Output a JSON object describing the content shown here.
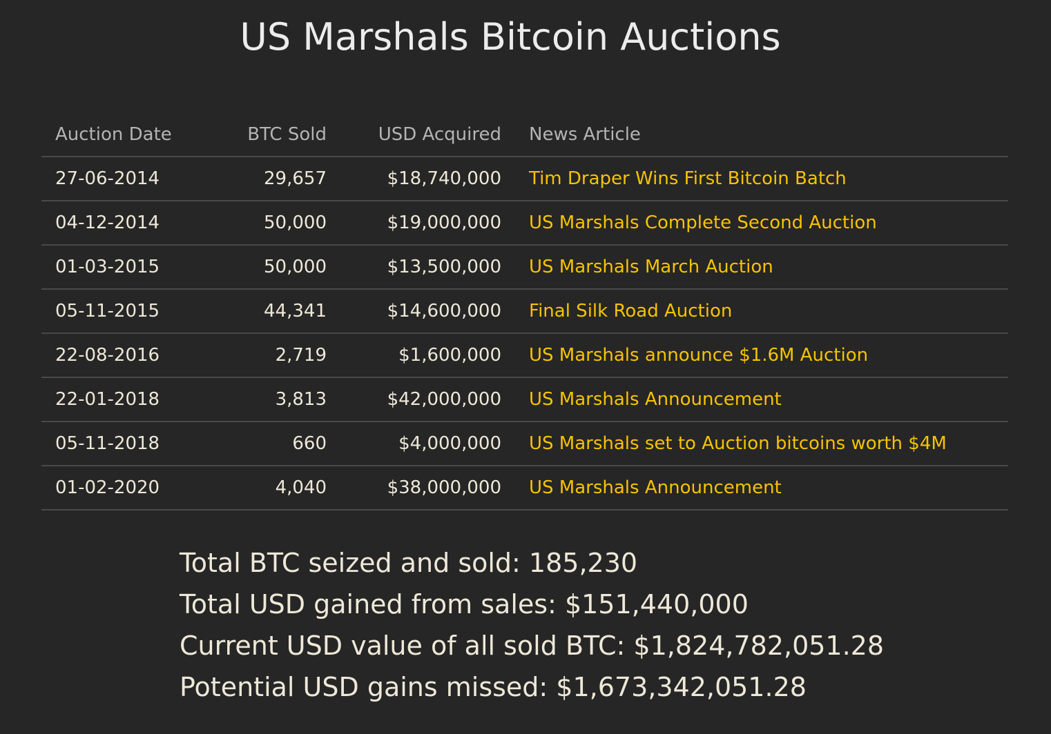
{
  "title": "US Marshals Bitcoin Auctions",
  "table": {
    "headers": [
      "Auction Date",
      "BTC Sold",
      "USD Acquired",
      "News Article"
    ],
    "rows": [
      {
        "date": "27-06-2014",
        "btc": "29,657",
        "usd": "$18,740,000",
        "article": "Tim Draper Wins First Bitcoin Batch"
      },
      {
        "date": "04-12-2014",
        "btc": "50,000",
        "usd": "$19,000,000",
        "article": "US Marshals Complete Second Auction"
      },
      {
        "date": "01-03-2015",
        "btc": "50,000",
        "usd": "$13,500,000",
        "article": "US Marshals March Auction"
      },
      {
        "date": "05-11-2015",
        "btc": "44,341",
        "usd": "$14,600,000",
        "article": "Final Silk Road Auction"
      },
      {
        "date": "22-08-2016",
        "btc": "2,719",
        "usd": "$1,600,000",
        "article": "US Marshals announce $1.6M Auction"
      },
      {
        "date": "22-01-2018",
        "btc": "3,813",
        "usd": "$42,000,000",
        "article": "US Marshals Announcement"
      },
      {
        "date": "05-11-2018",
        "btc": "660",
        "usd": "$4,000,000",
        "article": "US Marshals set to Auction bitcoins worth $4M"
      },
      {
        "date": "01-02-2020",
        "btc": "4,040",
        "usd": "$38,000,000",
        "article": "US Marshals Announcement"
      }
    ]
  },
  "summary": [
    "Total BTC seized and sold: 185,230",
    "Total USD gained from sales: $151,440,000",
    "Current USD value of all sold BTC: $1,824,782,051.28",
    "Potential USD gains missed: $1,673,342,051.28"
  ],
  "colors": {
    "background": "#262626",
    "link": "#f6c300",
    "header": "#b4b4b4",
    "text": "#eee8d8"
  }
}
